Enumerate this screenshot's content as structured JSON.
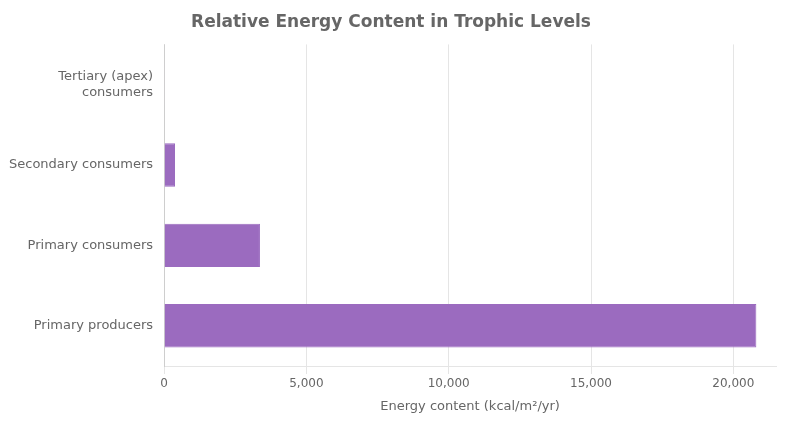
{
  "chart_data": {
    "type": "bar",
    "orientation": "horizontal",
    "title": "Relative Energy Content in Trophic Levels",
    "categories": [
      "Primary producers",
      "Primary consumers",
      "Secondary consumers",
      "Tertiary (apex)\nconsumers"
    ],
    "values": [
      20810,
      3368,
      383,
      21
    ],
    "color": "#9b6bbf",
    "xlabel": "Energy content (kcal/m²/yr)",
    "xlim": [
      0,
      21500
    ],
    "xticks": [
      0,
      {
        "value": 5000,
        "label": "5,000"
      },
      {
        "value": 10000,
        "label": "10,000"
      },
      {
        "value": 15000,
        "label": "15,000"
      },
      {
        "value": 20000,
        "label": "20,000"
      }
    ],
    "grid": true
  }
}
